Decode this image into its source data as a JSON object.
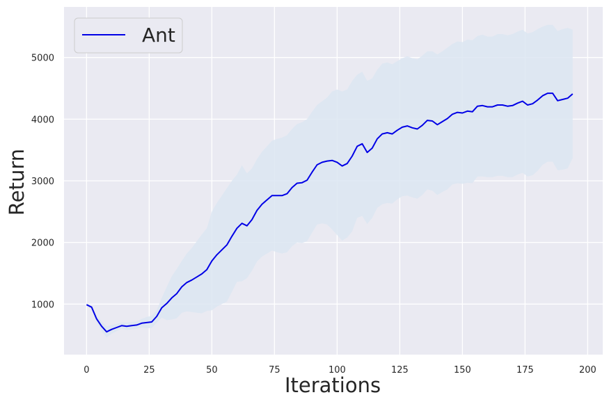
{
  "chart_data": {
    "type": "line",
    "title": "",
    "xlabel": "Iterations",
    "ylabel": "Return",
    "xlim": [
      -9,
      206
    ],
    "ylim": [
      180,
      5820
    ],
    "xticks": [
      0,
      25,
      50,
      75,
      100,
      125,
      150,
      175,
      200
    ],
    "yticks": [
      1000,
      2000,
      3000,
      4000,
      5000
    ],
    "xtick_labels": [
      "0",
      "25",
      "50",
      "75",
      "100",
      "125",
      "150",
      "175",
      "200"
    ],
    "ytick_labels": [
      "1000",
      "2000",
      "3000",
      "4000",
      "5000"
    ],
    "grid": true,
    "legend_position": "top-left",
    "colors": {
      "background": "#EAEAF2",
      "grid": "#FFFFFF",
      "line": "#0000E6",
      "band": "#DCE6F2"
    },
    "series": [
      {
        "name": "Ant",
        "x": [
          0,
          2,
          4,
          6,
          8,
          10,
          12,
          14,
          16,
          18,
          20,
          22,
          24,
          26,
          28,
          30,
          32,
          34,
          36,
          38,
          40,
          42,
          44,
          46,
          48,
          50,
          52,
          54,
          56,
          58,
          60,
          62,
          64,
          66,
          68,
          70,
          72,
          74,
          76,
          78,
          80,
          82,
          84,
          86,
          88,
          90,
          92,
          94,
          96,
          98,
          100,
          102,
          104,
          106,
          108,
          110,
          112,
          114,
          116,
          118,
          120,
          122,
          124,
          126,
          128,
          130,
          132,
          134,
          136,
          138,
          140,
          142,
          144,
          146,
          148,
          150,
          152,
          154,
          156,
          158,
          160,
          162,
          164,
          166,
          168,
          170,
          172,
          174,
          176,
          178,
          180,
          182,
          184,
          186,
          188,
          190,
          192,
          194
        ],
        "y": [
          990,
          950,
          760,
          640,
          550,
          590,
          620,
          650,
          640,
          650,
          660,
          690,
          700,
          710,
          800,
          940,
          1010,
          1100,
          1170,
          1280,
          1350,
          1390,
          1440,
          1490,
          1560,
          1700,
          1800,
          1880,
          1960,
          2100,
          2230,
          2310,
          2270,
          2370,
          2520,
          2620,
          2690,
          2760,
          2760,
          2760,
          2790,
          2890,
          2960,
          2970,
          3010,
          3140,
          3260,
          3300,
          3320,
          3330,
          3300,
          3240,
          3280,
          3400,
          3560,
          3600,
          3460,
          3530,
          3680,
          3760,
          3780,
          3760,
          3820,
          3870,
          3890,
          3860,
          3840,
          3900,
          3980,
          3970,
          3910,
          3960,
          4010,
          4080,
          4110,
          4100,
          4130,
          4120,
          4210,
          4220,
          4200,
          4200,
          4230,
          4230,
          4210,
          4220,
          4260,
          4290,
          4230,
          4250,
          4310,
          4380,
          4420,
          4420,
          4300,
          4320,
          4340,
          4410
        ],
        "upper": [
          1010,
          980,
          810,
          720,
          640,
          660,
          680,
          700,
          700,
          710,
          720,
          760,
          790,
          810,
          900,
          1100,
          1280,
          1450,
          1570,
          1700,
          1820,
          1910,
          2020,
          2130,
          2230,
          2500,
          2640,
          2760,
          2880,
          3000,
          3100,
          3250,
          3120,
          3200,
          3350,
          3470,
          3560,
          3650,
          3680,
          3700,
          3740,
          3840,
          3920,
          3950,
          4000,
          4120,
          4230,
          4290,
          4350,
          4450,
          4480,
          4450,
          4480,
          4620,
          4720,
          4770,
          4620,
          4660,
          4800,
          4900,
          4920,
          4890,
          4940,
          4990,
          5020,
          4990,
          4970,
          5030,
          5100,
          5100,
          5050,
          5100,
          5160,
          5220,
          5260,
          5250,
          5290,
          5280,
          5350,
          5370,
          5340,
          5340,
          5380,
          5380,
          5360,
          5380,
          5420,
          5450,
          5390,
          5410,
          5460,
          5500,
          5530,
          5530,
          5430,
          5460,
          5480,
          5450
        ],
        "lower": [
          970,
          920,
          710,
          560,
          460,
          520,
          560,
          600,
          580,
          590,
          600,
          620,
          610,
          610,
          700,
          780,
          740,
          750,
          770,
          860,
          880,
          870,
          860,
          850,
          890,
          900,
          960,
          1000,
          1040,
          1200,
          1360,
          1370,
          1420,
          1540,
          1690,
          1770,
          1820,
          1870,
          1840,
          1820,
          1840,
          1940,
          2000,
          1990,
          2020,
          2160,
          2290,
          2310,
          2290,
          2210,
          2120,
          2030,
          2080,
          2180,
          2400,
          2430,
          2300,
          2400,
          2560,
          2620,
          2640,
          2630,
          2700,
          2750,
          2760,
          2730,
          2710,
          2770,
          2860,
          2840,
          2770,
          2820,
          2860,
          2940,
          2960,
          2950,
          2970,
          2960,
          3070,
          3070,
          3060,
          3060,
          3080,
          3080,
          3060,
          3060,
          3100,
          3130,
          3070,
          3090,
          3160,
          3260,
          3310,
          3310,
          3170,
          3180,
          3200,
          3370
        ]
      }
    ]
  }
}
